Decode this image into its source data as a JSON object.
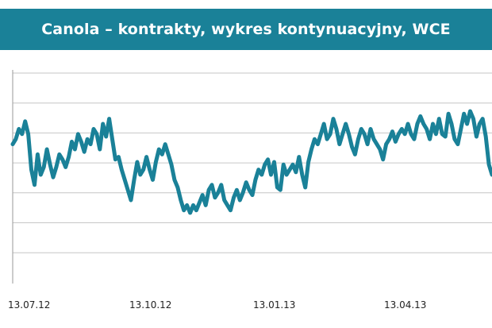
{
  "colors": {
    "header_bg": "#1a8198",
    "header_text": "#ffffff",
    "line": "#1a8198",
    "grid": "#c6c6c6",
    "axis": "#9a9a9a"
  },
  "chart_data": {
    "type": "line",
    "title": "Canola – kontrakty, wykres kontynuacyjny, WCE",
    "xlabel": "",
    "ylabel": "",
    "grid": true,
    "legend": "none",
    "x_tick_labels": [
      "13.07.12",
      "13.10.12",
      "13.01.13",
      "13.04.13"
    ],
    "y_gridlines": 7,
    "values": [
      62,
      64,
      68,
      66,
      71,
      66,
      52,
      46,
      58,
      50,
      53,
      60,
      54,
      49,
      53,
      58,
      56,
      53,
      57,
      63,
      60,
      66,
      63,
      59,
      64,
      62,
      68,
      66,
      60,
      70,
      65,
      72,
      64,
      56,
      57,
      52,
      48,
      44,
      40,
      48,
      55,
      50,
      52,
      57,
      52,
      48,
      55,
      60,
      58,
      62,
      58,
      54,
      48,
      45,
      40,
      36,
      38,
      35,
      38,
      36,
      39,
      42,
      38,
      44,
      46,
      41,
      43,
      46,
      40,
      38,
      36,
      41,
      44,
      40,
      43,
      47,
      44,
      42,
      48,
      52,
      50,
      54,
      56,
      50,
      55,
      45,
      44,
      54,
      50,
      52,
      54,
      51,
      57,
      50,
      45,
      55,
      60,
      64,
      62,
      66,
      70,
      64,
      66,
      72,
      68,
      62,
      66,
      70,
      66,
      61,
      58,
      64,
      68,
      66,
      62,
      68,
      64,
      62,
      60,
      56,
      62,
      64,
      67,
      63,
      66,
      68,
      66,
      70,
      66,
      64,
      70,
      73,
      70,
      68,
      64,
      70,
      66,
      72,
      66,
      65,
      74,
      70,
      64,
      62,
      68,
      74,
      70,
      75,
      72,
      65,
      70,
      72,
      65,
      54,
      50
    ]
  }
}
